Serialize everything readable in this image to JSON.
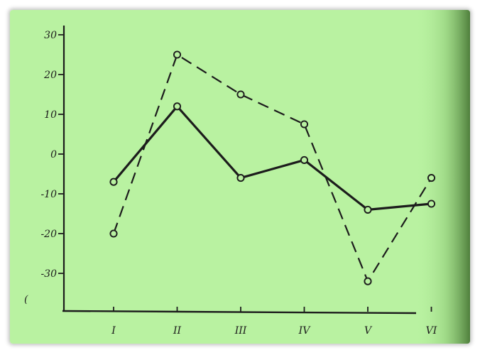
{
  "chart_data": {
    "type": "line",
    "title": "",
    "xlabel": "",
    "ylabel": "",
    "categories": [
      "I",
      "II",
      "III",
      "IV",
      "V",
      "VI"
    ],
    "ylim": [
      -40,
      32
    ],
    "y_ticks": [
      30,
      20,
      10,
      0,
      -10,
      -20,
      -30
    ],
    "grid": false,
    "legend": "none",
    "series": [
      {
        "style": "solid",
        "values": [
          -7,
          12,
          -6,
          -1.5,
          -14,
          -12.5
        ]
      },
      {
        "style": "dashed",
        "values": [
          -20,
          25,
          15,
          7.5,
          -32,
          -6
        ]
      }
    ]
  },
  "colors": {
    "background": "#b9f2a1",
    "ink": "#1c1c1c",
    "shadow_edge": "#6e9e58"
  }
}
